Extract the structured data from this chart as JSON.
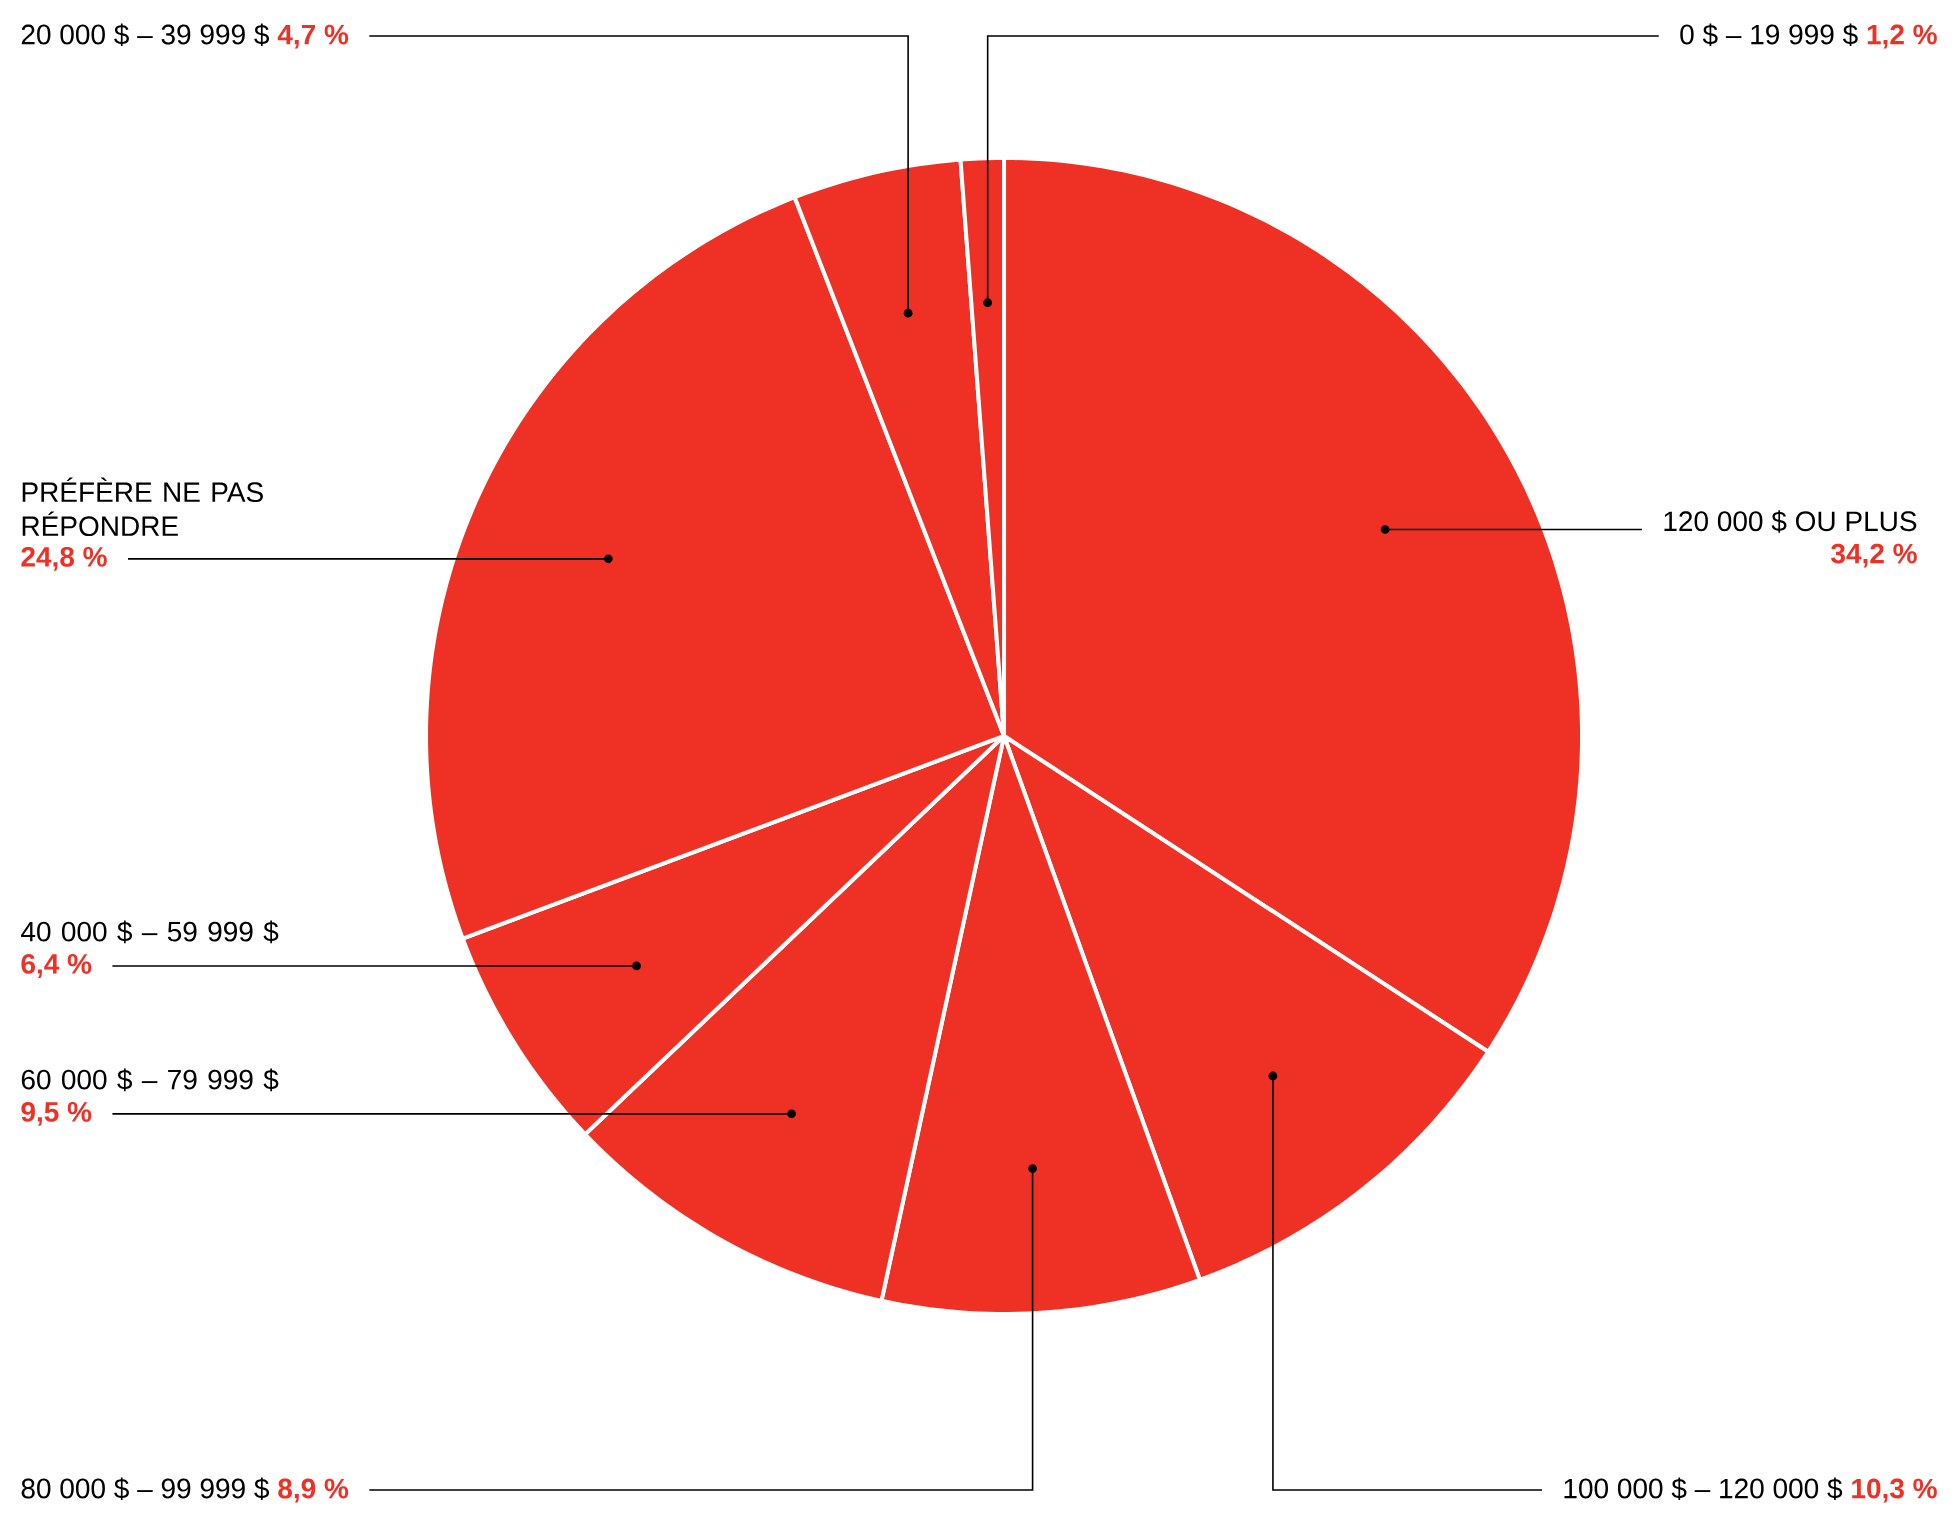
{
  "chart_data": {
    "type": "pie",
    "categories": [
      "120 000 $ OU PLUS",
      "100 000 $ – 120 000 $",
      "80 000 $ – 99 999 $",
      "60 000 $ – 79 999 $",
      "40 000 $ – 59 999 $",
      "PRÉFÈRE NE PAS RÉPONDRE",
      "20 000 $ – 39 999 $",
      "0 $ – 19 999 $"
    ],
    "values": [
      34.2,
      10.3,
      8.9,
      9.5,
      6.4,
      24.8,
      4.7,
      1.2
    ],
    "colors": [
      "#ee3124",
      "#ee3124",
      "#ee3124",
      "#ee3124",
      "#ee3124",
      "#ee3124",
      "#ee3124",
      "#ee3124"
    ],
    "value_labels": [
      "34,2 %",
      "10,3 %",
      "8,9 %",
      "9,5 %",
      "6,4 %",
      "24,8 %",
      "4,7 %",
      "1,2 %"
    ]
  }
}
